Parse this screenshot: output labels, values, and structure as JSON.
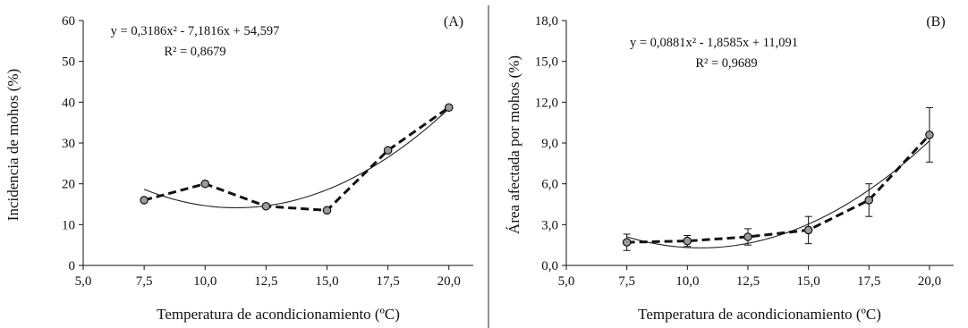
{
  "chart_data": [
    {
      "type": "line",
      "panel": "(A)",
      "xlabel": "Temperatura de acondicionamiento (ºC)",
      "ylabel": "Incidencia de mohos (%)",
      "xlim": [
        5,
        21
      ],
      "ylim": [
        0,
        60
      ],
      "x_ticks": [
        5,
        7.5,
        10,
        12.5,
        15,
        17.5,
        20
      ],
      "x_tick_labels": [
        "5,0",
        "7,5",
        "10,0",
        "12,5",
        "15,0",
        "17,5",
        "20,0"
      ],
      "y_ticks": [
        0,
        10,
        20,
        30,
        40,
        50,
        60
      ],
      "y_tick_labels": [
        "0",
        "10",
        "20",
        "30",
        "40",
        "50",
        "60"
      ],
      "x": [
        7.5,
        10,
        12.5,
        15,
        17.5,
        20
      ],
      "series": [
        {
          "values": [
            16,
            20,
            14.5,
            13.5,
            28.2,
            38.7
          ]
        }
      ],
      "trendline": {
        "a": 0.3186,
        "b": -7.1816,
        "c": 54.597
      },
      "equation": "y = 0,3186x² - 7,1816x + 54,597",
      "r2": "R² = 0,8679",
      "colors": {
        "series": "#111111",
        "trend": "#222222",
        "marker_fill": "#9a9a9a"
      }
    },
    {
      "type": "line",
      "panel": "(B)",
      "xlabel": "Temperatura de acondicionamiento (ºC)",
      "ylabel": "Área afectada por mohos (%)",
      "xlim": [
        5,
        21
      ],
      "ylim": [
        0,
        18
      ],
      "x_ticks": [
        5,
        7.5,
        10,
        12.5,
        15,
        17.5,
        20
      ],
      "x_tick_labels": [
        "5,0",
        "7,5",
        "10,0",
        "12,5",
        "15,0",
        "17,5",
        "20,0"
      ],
      "y_ticks": [
        0,
        3,
        6,
        9,
        12,
        15,
        18
      ],
      "y_tick_labels": [
        "0,0",
        "3,0",
        "6,0",
        "9,0",
        "12,0",
        "15,0",
        "18,0"
      ],
      "x": [
        7.5,
        10,
        12.5,
        15,
        17.5,
        20
      ],
      "series": [
        {
          "values": [
            1.7,
            1.8,
            2.1,
            2.6,
            4.8,
            9.6
          ],
          "error": [
            0.6,
            0.4,
            0.6,
            1.0,
            1.2,
            2.0
          ]
        }
      ],
      "trendline": {
        "a": 0.0881,
        "b": -1.8585,
        "c": 11.091
      },
      "equation": "y = 0,0881x² - 1,8585x + 11,091",
      "r2": "R² = 0,9689",
      "colors": {
        "series": "#111111",
        "trend": "#222222",
        "marker_fill": "#9a9a9a"
      }
    }
  ]
}
